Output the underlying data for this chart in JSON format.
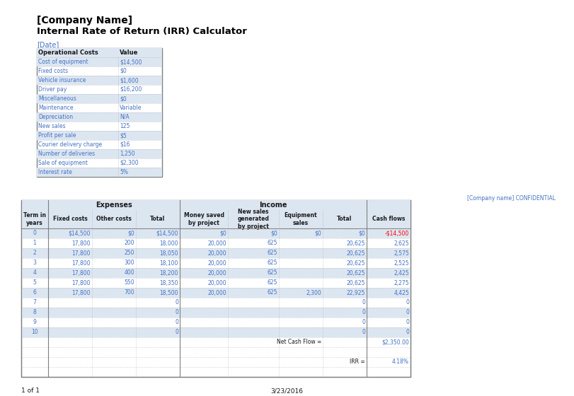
{
  "title_company": "[Company Name]",
  "title_main": "Internal Rate of Return (IRR) Calculator",
  "date_label": "[Date]",
  "confidential": "[Company name] CONFIDENTIAL",
  "footer_left": "1 of 1",
  "footer_center": "3/23/2016",
  "op_costs_headers": [
    "Operational Costs",
    "Value"
  ],
  "op_costs_rows": [
    [
      "Cost of equipment",
      "$14,500"
    ],
    [
      "Fixed costs",
      "$0"
    ],
    [
      "Vehicle insurance",
      "$1,600"
    ],
    [
      "Driver pay",
      "$16,200"
    ],
    [
      "Miscellaneous",
      "$0"
    ],
    [
      "Maintenance",
      "Variable"
    ],
    [
      "Depreciation",
      "N/A"
    ],
    [
      "New sales",
      "125"
    ],
    [
      "Profit per sale",
      "$5"
    ],
    [
      "Courier delivery charge",
      "$16"
    ],
    [
      "Number of deliveries",
      "1,250"
    ],
    [
      "Sale of equipment",
      "$2,300"
    ],
    [
      "Interest rate",
      "5%"
    ]
  ],
  "main_table_col_headers_row2": [
    "Term in\nyears",
    "Fixed costs",
    "Other costs",
    "Total",
    "Money saved\nby project",
    "New sales\ngenerated\nby project",
    "Equipment\nsales",
    "Total",
    "Cash flows"
  ],
  "main_table_data": [
    [
      "0",
      "$14,500",
      "$0",
      "$14,500",
      "$0",
      "$0",
      "$0",
      "$0",
      "-$14,500"
    ],
    [
      "1",
      "17,800",
      "200",
      "18,000",
      "20,000",
      "625",
      "",
      "20,625",
      "2,625"
    ],
    [
      "2",
      "17,800",
      "250",
      "18,050",
      "20,000",
      "625",
      "",
      "20,625",
      "2,575"
    ],
    [
      "3",
      "17,800",
      "300",
      "18,100",
      "20,000",
      "625",
      "",
      "20,625",
      "2,525"
    ],
    [
      "4",
      "17,800",
      "400",
      "18,200",
      "20,000",
      "625",
      "",
      "20,625",
      "2,425"
    ],
    [
      "5",
      "17,800",
      "550",
      "18,350",
      "20,000",
      "625",
      "",
      "20,625",
      "2,275"
    ],
    [
      "6",
      "17,800",
      "700",
      "18,500",
      "20,000",
      "625",
      "2,300",
      "22,925",
      "4,425"
    ],
    [
      "7",
      "",
      "",
      "0",
      "",
      "",
      "",
      "0",
      "0"
    ],
    [
      "8",
      "",
      "",
      "0",
      "",
      "",
      "",
      "0",
      "0"
    ],
    [
      "9",
      "",
      "",
      "0",
      "",
      "",
      "",
      "0",
      "0"
    ],
    [
      "10",
      "",
      "",
      "0",
      "",
      "",
      "",
      "0",
      "0"
    ]
  ],
  "net_cash_flow_label": "Net Cash Flow =",
  "net_cash_flow_value": "$2,350.00",
  "irr_label": "IRR =",
  "irr_value": "4.18%",
  "white": "#ffffff",
  "header_bg": "#dce6f1",
  "alt_row_bg": "#dce6f1",
  "blue_text": "#4472c4",
  "red_text": "#ff0000",
  "dark_text": "#1a1a1a",
  "title_color": "#000000",
  "border_color": "#7f7f7f",
  "dotted_color": "#aaaaaa"
}
